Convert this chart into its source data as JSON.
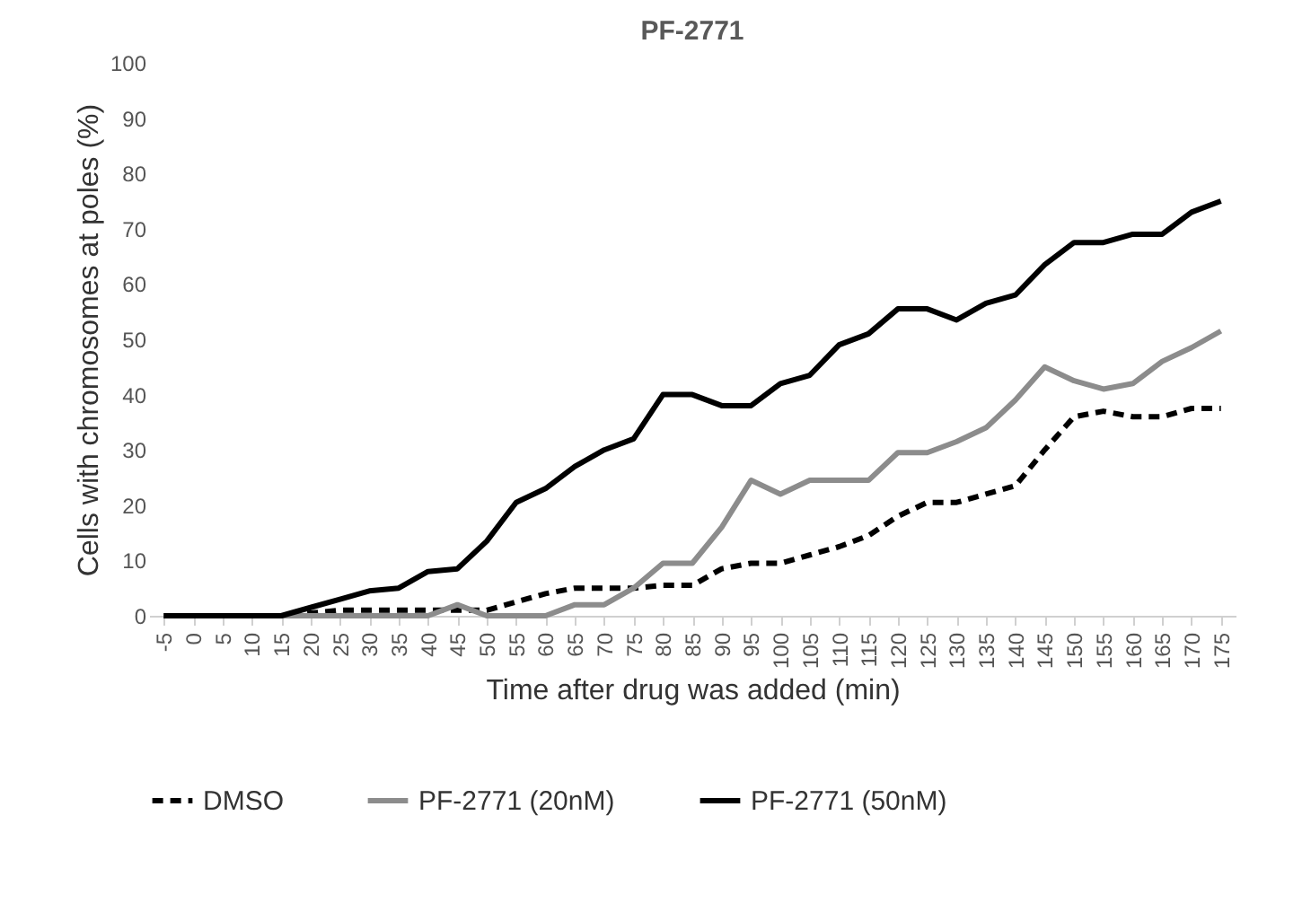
{
  "chart_data": {
    "type": "line",
    "title": "PF-2771",
    "xlabel": "Time after drug was added (min)",
    "ylabel": "Cells with chromosomes at poles (%)",
    "categories": [
      "-5",
      "0",
      "5",
      "10",
      "15",
      "20",
      "25",
      "30",
      "35",
      "40",
      "45",
      "50",
      "55",
      "60",
      "65",
      "70",
      "75",
      "80",
      "85",
      "90",
      "95",
      "100",
      "105",
      "110",
      "115",
      "120",
      "125",
      "130",
      "135",
      "140",
      "145",
      "150",
      "155",
      "160",
      "165",
      "170",
      "175"
    ],
    "series": [
      {
        "name": "DMSO",
        "color": "#000000",
        "line_style": "dashed",
        "values": [
          0,
          0,
          0,
          0,
          0,
          0.5,
          1,
          1,
          1,
          1,
          1,
          1,
          2.5,
          4,
          5,
          5,
          5,
          5.5,
          5.5,
          8.5,
          9.5,
          9.5,
          11,
          12.5,
          14.5,
          18,
          20.5,
          20.5,
          22,
          23.5,
          30,
          36,
          37,
          36,
          36,
          37.5,
          37.5
        ]
      },
      {
        "name": "PF-2771 (20nM)",
        "color": "#8c8c8c",
        "line_style": "solid",
        "values": [
          0,
          0,
          0,
          0,
          0,
          0,
          0,
          0,
          0,
          0,
          2,
          0,
          0,
          0,
          2,
          2,
          5,
          9.5,
          9.5,
          16,
          24.5,
          22,
          24.5,
          24.5,
          24.5,
          29.5,
          29.5,
          31.5,
          34,
          39,
          45,
          42.5,
          41,
          42,
          46,
          48.5,
          51.5
        ]
      },
      {
        "name": "PF-2771 (50nM)",
        "color": "#000000",
        "line_style": "solid",
        "values": [
          0,
          0,
          0,
          0,
          0,
          1.5,
          3,
          4.5,
          5,
          8,
          8.5,
          13.5,
          20.5,
          23,
          27,
          30,
          32,
          40,
          40,
          38,
          38,
          42,
          43.5,
          49,
          51,
          55.5,
          55.5,
          53.5,
          56.5,
          58,
          63.5,
          67.5,
          67.5,
          69,
          69,
          73,
          75
        ]
      }
    ],
    "ylim": [
      0,
      100
    ],
    "yticks": [
      0,
      10,
      20,
      30,
      40,
      50,
      60,
      70,
      80,
      90,
      100
    ],
    "grid": false,
    "legend": "bottom",
    "marker": "none"
  }
}
